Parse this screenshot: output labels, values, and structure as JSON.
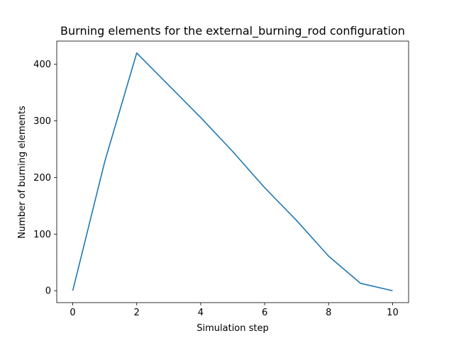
{
  "chart_data": {
    "type": "line",
    "title": "Burning elements for the external_burning_rod configuration",
    "xlabel": "Simulation step",
    "ylabel": "Number of burning elements",
    "xlim": [
      -0.5,
      10.5
    ],
    "ylim": [
      -21,
      441
    ],
    "xticks": [
      0,
      2,
      4,
      6,
      8,
      10
    ],
    "yticks": [
      0,
      100,
      200,
      300,
      400
    ],
    "grid": false,
    "series": [
      {
        "color": "#1f77b4",
        "x": [
          0,
          1,
          2,
          3,
          4,
          5,
          6,
          7,
          8,
          9,
          10
        ],
        "y": [
          0,
          228,
          420,
          363,
          306,
          246,
          182,
          124,
          61,
          13,
          0
        ]
      }
    ]
  }
}
